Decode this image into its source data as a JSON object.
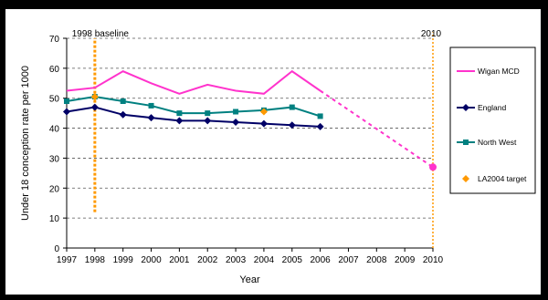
{
  "chart_data": {
    "type": "line",
    "x": [
      1997,
      1998,
      1999,
      2000,
      2001,
      2002,
      2003,
      2004,
      2005,
      2006,
      2007,
      2008,
      2009,
      2010
    ],
    "ylabel": "Under 18 conception rate per 1000",
    "xlabel": "Year",
    "ylim": [
      0,
      70
    ],
    "yticks": [
      0,
      10,
      20,
      30,
      40,
      50,
      60,
      70
    ],
    "grid": true,
    "legend_position": "right",
    "annotations": [
      {
        "text": "1998 baseline",
        "x": 1998
      },
      {
        "text": "2010",
        "x": 2010
      }
    ],
    "series": [
      {
        "name": "Wigan MCD",
        "color": "#ff33cc",
        "marker": "none",
        "x": [
          1997,
          1998,
          1999,
          2000,
          2001,
          2002,
          2003,
          2004,
          2005,
          2006
        ],
        "values": [
          52.5,
          53.5,
          59,
          55,
          51.5,
          54.5,
          52.5,
          51.5,
          59,
          52.5
        ]
      },
      {
        "name": "England",
        "color": "#000066",
        "marker": "diamond",
        "x": [
          1997,
          1998,
          1999,
          2000,
          2001,
          2002,
          2003,
          2004,
          2005,
          2006
        ],
        "values": [
          45.5,
          47,
          44.5,
          43.5,
          42.5,
          42.5,
          42,
          41.5,
          41,
          40.5
        ]
      },
      {
        "name": "North West",
        "color": "#008080",
        "marker": "square",
        "x": [
          1997,
          1998,
          1999,
          2000,
          2001,
          2002,
          2003,
          2004,
          2005,
          2006
        ],
        "values": [
          49,
          50.5,
          49,
          47.5,
          45,
          45,
          45.5,
          46,
          47,
          44
        ]
      },
      {
        "name": "LA2004 target",
        "color": "#ff9900",
        "marker": "diamond",
        "x": [
          1998,
          2004
        ],
        "values": [
          50.5,
          45.5
        ]
      }
    ],
    "projection": {
      "color": "#ff33cc",
      "from": {
        "x": 2006,
        "y": 52.5
      },
      "to": {
        "x": 2010,
        "y": 27
      }
    },
    "reference_lines": [
      {
        "x": 1998,
        "color": "#ff9900",
        "from": 12,
        "to": 70
      },
      {
        "x": 2010,
        "color": "#ff9900",
        "from": 0,
        "to": 72
      }
    ]
  }
}
